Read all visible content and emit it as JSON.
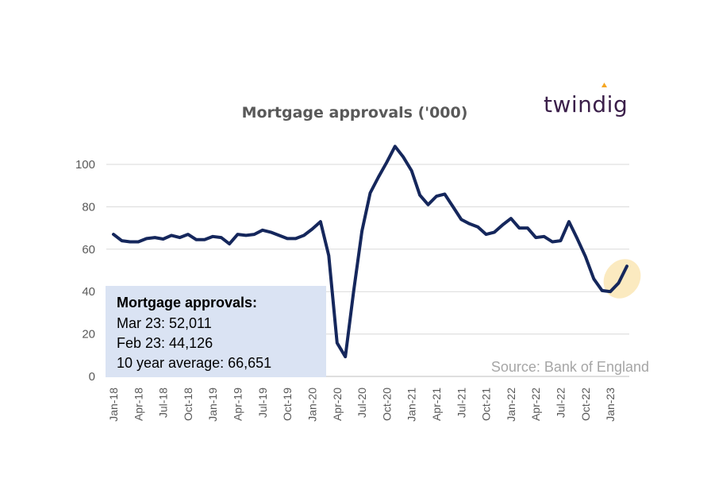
{
  "logo": "twindig",
  "source": "Source: Bank of England",
  "annotation": {
    "heading": "Mortgage approvals:",
    "lines": [
      "Mar 23: 52,011",
      "Feb 23: 44,126",
      "10 year average: 66,651"
    ]
  },
  "colors": {
    "line": "#15275c",
    "grid": "#d9d9d9",
    "annotation_box": "#dae3f3",
    "highlight": "#fbeac0",
    "logo_dot": "#f5a623"
  },
  "chart_data": {
    "type": "line",
    "title": "Mortgage approvals ('000)",
    "xlabel": "",
    "ylabel": "",
    "ylim": [
      0,
      110
    ],
    "yticks": [
      0,
      20,
      40,
      60,
      80,
      100
    ],
    "grid": true,
    "x": [
      "Jan-18",
      "Feb-18",
      "Mar-18",
      "Apr-18",
      "May-18",
      "Jun-18",
      "Jul-18",
      "Aug-18",
      "Sep-18",
      "Oct-18",
      "Nov-18",
      "Dec-18",
      "Jan-19",
      "Feb-19",
      "Mar-19",
      "Apr-19",
      "May-19",
      "Jun-19",
      "Jul-19",
      "Aug-19",
      "Sep-19",
      "Oct-19",
      "Nov-19",
      "Dec-19",
      "Jan-20",
      "Feb-20",
      "Mar-20",
      "Apr-20",
      "May-20",
      "Jun-20",
      "Jul-20",
      "Aug-20",
      "Sep-20",
      "Oct-20",
      "Nov-20",
      "Dec-20",
      "Jan-21",
      "Feb-21",
      "Mar-21",
      "Apr-21",
      "May-21",
      "Jun-21",
      "Jul-21",
      "Aug-21",
      "Sep-21",
      "Oct-21",
      "Nov-21",
      "Dec-21",
      "Jan-22",
      "Feb-22",
      "Mar-22",
      "Apr-22",
      "May-22",
      "Jun-22",
      "Jul-22",
      "Aug-22",
      "Sep-22",
      "Oct-22",
      "Nov-22",
      "Dec-22",
      "Jan-23",
      "Feb-23",
      "Mar-23"
    ],
    "tick_labels": [
      "Jan-18",
      "Apr-18",
      "Jul-18",
      "Oct-18",
      "Jan-19",
      "Apr-19",
      "Jul-19",
      "Oct-19",
      "Jan-20",
      "Apr-20",
      "Jul-20",
      "Oct-20",
      "Jan-21",
      "Apr-21",
      "Jul-21",
      "Oct-21",
      "Jan-22",
      "Apr-22",
      "Jul-22",
      "Oct-22",
      "Jan-23"
    ],
    "tick_every": 3,
    "series": [
      {
        "values": [
          67,
          64,
          63.5,
          63.5,
          65,
          65.5,
          64.8,
          66.5,
          65.5,
          67,
          64.5,
          64.5,
          66,
          65.5,
          62.5,
          67,
          66.5,
          67,
          69,
          68,
          66.5,
          65,
          65,
          66.5,
          69.5,
          73,
          57,
          15.8,
          9.3,
          40,
          68.5,
          86.5,
          94,
          101,
          108.5,
          103.5,
          97,
          85.5,
          81,
          85,
          86,
          80,
          74,
          72,
          70.5,
          67,
          68,
          71.5,
          74.5,
          70,
          70,
          65.5,
          66,
          63.5,
          64,
          73,
          65,
          56.5,
          46,
          40.5,
          40,
          44.1,
          52
        ]
      }
    ]
  }
}
